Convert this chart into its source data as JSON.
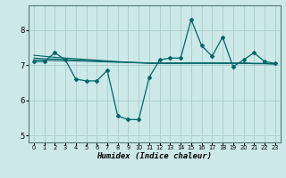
{
  "xlabel": "Humidex (Indice chaleur)",
  "ylabel": "",
  "background_color": "#cce8e8",
  "grid_color": "#aacccc",
  "line_color": "#006666",
  "xlim": [
    -0.5,
    23.5
  ],
  "ylim": [
    4.8,
    8.7
  ],
  "xticks": [
    0,
    1,
    2,
    3,
    4,
    5,
    6,
    7,
    8,
    9,
    10,
    11,
    12,
    13,
    14,
    15,
    16,
    17,
    18,
    19,
    20,
    21,
    22,
    23
  ],
  "yticks": [
    5,
    6,
    7,
    8
  ],
  "main_series": [
    7.1,
    7.1,
    7.35,
    7.15,
    6.6,
    6.55,
    6.55,
    6.85,
    5.55,
    5.45,
    5.45,
    6.65,
    7.15,
    7.2,
    7.2,
    8.3,
    7.55,
    7.25,
    7.8,
    6.95,
    7.15,
    7.35,
    7.1,
    7.05
  ],
  "trend1": [
    7.28,
    7.25,
    7.22,
    7.2,
    7.18,
    7.16,
    7.14,
    7.12,
    7.1,
    7.08,
    7.06,
    7.05,
    7.05,
    7.05,
    7.05,
    7.06,
    7.06,
    7.06,
    7.06,
    7.06,
    7.06,
    7.05,
    7.05,
    7.04
  ],
  "trend2": [
    7.2,
    7.18,
    7.17,
    7.16,
    7.14,
    7.13,
    7.12,
    7.1,
    7.09,
    7.08,
    7.07,
    7.06,
    7.05,
    7.05,
    7.05,
    7.05,
    7.05,
    7.05,
    7.05,
    7.05,
    7.05,
    7.04,
    7.04,
    7.03
  ],
  "trend3": [
    7.15,
    7.14,
    7.13,
    7.12,
    7.12,
    7.11,
    7.1,
    7.09,
    7.08,
    7.08,
    7.07,
    7.06,
    7.06,
    7.06,
    7.06,
    7.06,
    7.06,
    7.06,
    7.05,
    7.05,
    7.05,
    7.04,
    7.04,
    7.03
  ]
}
